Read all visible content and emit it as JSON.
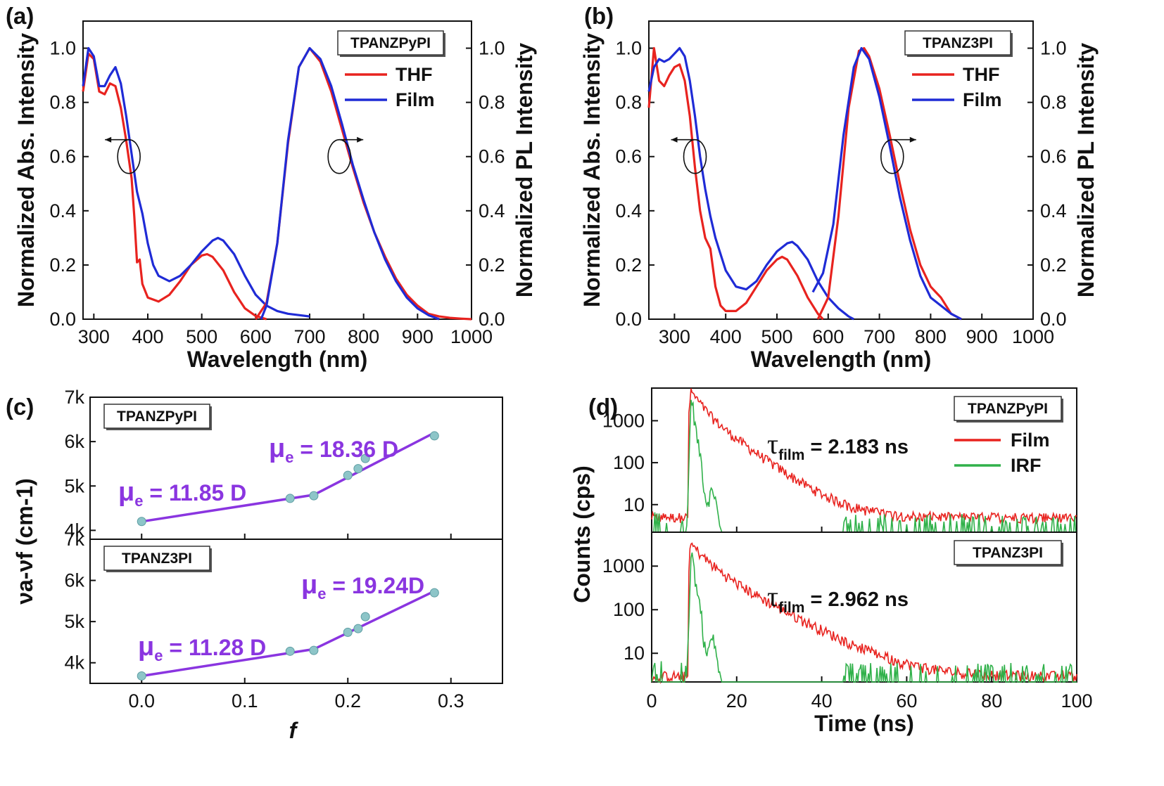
{
  "panel_letters": [
    "(a)",
    "(b)",
    "(c)",
    "(d)"
  ],
  "colors": {
    "thf": "#e8231f",
    "film": "#1f2bd6",
    "irf": "#30b14a",
    "fit": "#8a35e0",
    "point": "#8dc5c8"
  },
  "chart_data": [
    {
      "id": "a",
      "type": "line",
      "label": "TPANZPyPI",
      "xlabel": "Wavelength (nm)",
      "ylabel_left": "Normalized Abs. Intensity",
      "ylabel_right": "Normalized PL Intensity",
      "xlim": [
        280,
        1000
      ],
      "ylim": [
        0,
        1.1
      ],
      "xticks": [
        "300",
        "400",
        "500",
        "600",
        "700",
        "800",
        "900",
        "1000"
      ],
      "yticks": [
        "0.0",
        "0.2",
        "0.4",
        "0.6",
        "0.8",
        "1.0"
      ],
      "legend": [
        "THF",
        "Film"
      ],
      "series": [
        {
          "name": "THF",
          "role": "abs",
          "x": [
            280,
            290,
            300,
            310,
            320,
            330,
            340,
            350,
            360,
            370,
            375,
            380,
            385,
            390,
            400,
            420,
            440,
            460,
            480,
            500,
            510,
            520,
            540,
            560,
            580,
            600,
            620
          ],
          "y": [
            0.84,
            0.98,
            0.96,
            0.84,
            0.83,
            0.87,
            0.86,
            0.78,
            0.66,
            0.52,
            0.38,
            0.21,
            0.22,
            0.13,
            0.08,
            0.065,
            0.09,
            0.14,
            0.2,
            0.235,
            0.24,
            0.23,
            0.18,
            0.1,
            0.04,
            0.012,
            0.0
          ]
        },
        {
          "name": "Film",
          "role": "abs",
          "x": [
            280,
            290,
            300,
            310,
            320,
            330,
            340,
            350,
            360,
            370,
            380,
            390,
            400,
            410,
            420,
            440,
            460,
            480,
            500,
            520,
            530,
            540,
            560,
            580,
            600,
            620,
            640,
            660,
            680,
            700
          ],
          "y": [
            0.86,
            1.0,
            0.97,
            0.86,
            0.86,
            0.9,
            0.93,
            0.87,
            0.75,
            0.61,
            0.47,
            0.39,
            0.28,
            0.2,
            0.16,
            0.14,
            0.16,
            0.2,
            0.25,
            0.29,
            0.3,
            0.29,
            0.24,
            0.16,
            0.09,
            0.05,
            0.03,
            0.02,
            0.015,
            0.01
          ]
        },
        {
          "name": "THF",
          "role": "pl",
          "x": [
            600,
            620,
            640,
            660,
            680,
            700,
            720,
            740,
            760,
            780,
            800,
            820,
            840,
            860,
            880,
            900,
            920,
            940,
            960,
            980,
            1000
          ],
          "y": [
            0.0,
            0.06,
            0.28,
            0.65,
            0.93,
            1.0,
            0.95,
            0.84,
            0.7,
            0.56,
            0.43,
            0.32,
            0.23,
            0.15,
            0.09,
            0.05,
            0.02,
            0.01,
            0.005,
            0.002,
            0.0
          ]
        },
        {
          "name": "Film",
          "role": "pl",
          "x": [
            610,
            620,
            640,
            660,
            680,
            700,
            720,
            740,
            760,
            780,
            800,
            820,
            840,
            860,
            880,
            900,
            920,
            940
          ],
          "y": [
            0.0,
            0.05,
            0.28,
            0.66,
            0.93,
            1.0,
            0.96,
            0.86,
            0.72,
            0.57,
            0.44,
            0.32,
            0.22,
            0.14,
            0.08,
            0.04,
            0.015,
            0.0
          ]
        }
      ]
    },
    {
      "id": "b",
      "type": "line",
      "label": "TPANZ3PI",
      "xlabel": "Wavelength (nm)",
      "ylabel_left": "Normalized Abs. Intensity",
      "ylabel_right": "Normalized PL Intensity",
      "xlim": [
        250,
        1000
      ],
      "ylim": [
        0,
        1.1
      ],
      "xticks": [
        "300",
        "400",
        "500",
        "600",
        "700",
        "800",
        "900",
        "1000"
      ],
      "yticks": [
        "0.0",
        "0.2",
        "0.4",
        "0.6",
        "0.8",
        "1.0"
      ],
      "legend": [
        "THF",
        "Film"
      ],
      "series": [
        {
          "name": "THF",
          "role": "abs",
          "x": [
            250,
            260,
            270,
            280,
            290,
            300,
            310,
            320,
            330,
            340,
            350,
            360,
            370,
            380,
            390,
            400,
            420,
            440,
            460,
            480,
            500,
            510,
            520,
            540,
            560,
            580,
            590
          ],
          "y": [
            0.78,
            1.0,
            0.88,
            0.86,
            0.9,
            0.93,
            0.94,
            0.88,
            0.75,
            0.56,
            0.4,
            0.3,
            0.26,
            0.12,
            0.05,
            0.03,
            0.03,
            0.06,
            0.12,
            0.18,
            0.22,
            0.23,
            0.22,
            0.16,
            0.08,
            0.02,
            0.0
          ]
        },
        {
          "name": "Film",
          "role": "abs",
          "x": [
            250,
            260,
            270,
            280,
            290,
            300,
            310,
            320,
            330,
            340,
            350,
            360,
            370,
            380,
            390,
            400,
            420,
            440,
            460,
            480,
            500,
            520,
            530,
            540,
            560,
            580,
            600,
            620,
            640,
            650
          ],
          "y": [
            0.84,
            0.93,
            0.96,
            0.95,
            0.96,
            0.98,
            1.0,
            0.97,
            0.88,
            0.75,
            0.6,
            0.48,
            0.38,
            0.3,
            0.24,
            0.18,
            0.12,
            0.11,
            0.14,
            0.2,
            0.25,
            0.28,
            0.285,
            0.27,
            0.22,
            0.14,
            0.08,
            0.04,
            0.01,
            0.0
          ]
        },
        {
          "name": "THF",
          "role": "pl",
          "x": [
            580,
            600,
            620,
            640,
            660,
            670,
            680,
            700,
            720,
            740,
            760,
            780,
            800,
            810,
            820,
            840,
            860
          ],
          "y": [
            0.0,
            0.08,
            0.38,
            0.78,
            0.99,
            1.0,
            0.97,
            0.85,
            0.68,
            0.5,
            0.33,
            0.2,
            0.12,
            0.1,
            0.08,
            0.02,
            0.0
          ]
        },
        {
          "name": "Film",
          "role": "pl",
          "x": [
            570,
            590,
            610,
            630,
            650,
            665,
            680,
            700,
            720,
            740,
            760,
            780,
            800,
            820,
            840,
            860
          ],
          "y": [
            0.1,
            0.17,
            0.35,
            0.68,
            0.93,
            1.0,
            0.96,
            0.82,
            0.64,
            0.45,
            0.29,
            0.16,
            0.08,
            0.05,
            0.02,
            0.0
          ]
        }
      ]
    },
    {
      "id": "c",
      "type": "scatter",
      "xlabel": "f",
      "ylabel": "νa-νf (cm-1)",
      "xlim": [
        -0.05,
        0.35
      ],
      "xticks": [
        "0.0",
        "0.1",
        "0.2",
        "0.3"
      ],
      "subplots": [
        {
          "label": "TPANZPyPI",
          "ylim": [
            3800,
            7000
          ],
          "yticks": [
            "4k",
            "5k",
            "6k",
            "7k"
          ],
          "x": [
            0.0,
            0.144,
            0.167,
            0.2,
            0.21,
            0.217,
            0.284
          ],
          "y": [
            4200,
            4720,
            4780,
            5240,
            5390,
            5620,
            6130
          ],
          "fits": [
            {
              "x": [
                0.0,
                0.167
              ],
              "y": [
                4200,
                4800
              ],
              "label": "μe = 11.85 D"
            },
            {
              "x": [
                0.167,
                0.284
              ],
              "y": [
                4800,
                6200
              ],
              "label": "μe = 18.36 D"
            }
          ]
        },
        {
          "label": "TPANZ3PI",
          "ylim": [
            3500,
            7000
          ],
          "yticks": [
            "4k",
            "5k",
            "6k",
            "7k"
          ],
          "x": [
            0.0,
            0.144,
            0.167,
            0.2,
            0.21,
            0.217,
            0.284
          ],
          "y": [
            3680,
            4280,
            4300,
            4740,
            4830,
            5120,
            5700
          ],
          "fits": [
            {
              "x": [
                0.0,
                0.167
              ],
              "y": [
                3680,
                4330
              ],
              "label": "μe = 11.28 D"
            },
            {
              "x": [
                0.167,
                0.284
              ],
              "y": [
                4330,
                5740
              ],
              "label": "μe = 19.24D"
            }
          ]
        }
      ]
    },
    {
      "id": "d",
      "type": "line",
      "xlabel": "Time (ns)",
      "ylabel": "Counts (cps)",
      "xlim": [
        0,
        100
      ],
      "xticks": [
        "0",
        "20",
        "40",
        "60",
        "80",
        "100"
      ],
      "yscale": "log",
      "legend": [
        "Film",
        "IRF"
      ],
      "subplots": [
        {
          "label": "TPANZPyPI",
          "tau_prefix": "τ",
          "tau_sub": "film",
          "tau_value": "= 2.183 ns",
          "tau": 2.183,
          "ylim": [
            2.2,
            6000
          ],
          "yticks": [
            "10",
            "100",
            "1000"
          ],
          "peak_time": 9.3,
          "peak_counts": 5000,
          "film_baseline": 5
        },
        {
          "label": "TPANZ3PI",
          "tau_prefix": "τ",
          "tau_sub": "film",
          "tau_value": "= 2.962 ns",
          "tau": 2.962,
          "ylim": [
            2.2,
            6000
          ],
          "yticks": [
            "10",
            "100",
            "1000"
          ],
          "peak_time": 9.3,
          "peak_counts": 3200,
          "film_baseline": 3
        }
      ]
    }
  ]
}
